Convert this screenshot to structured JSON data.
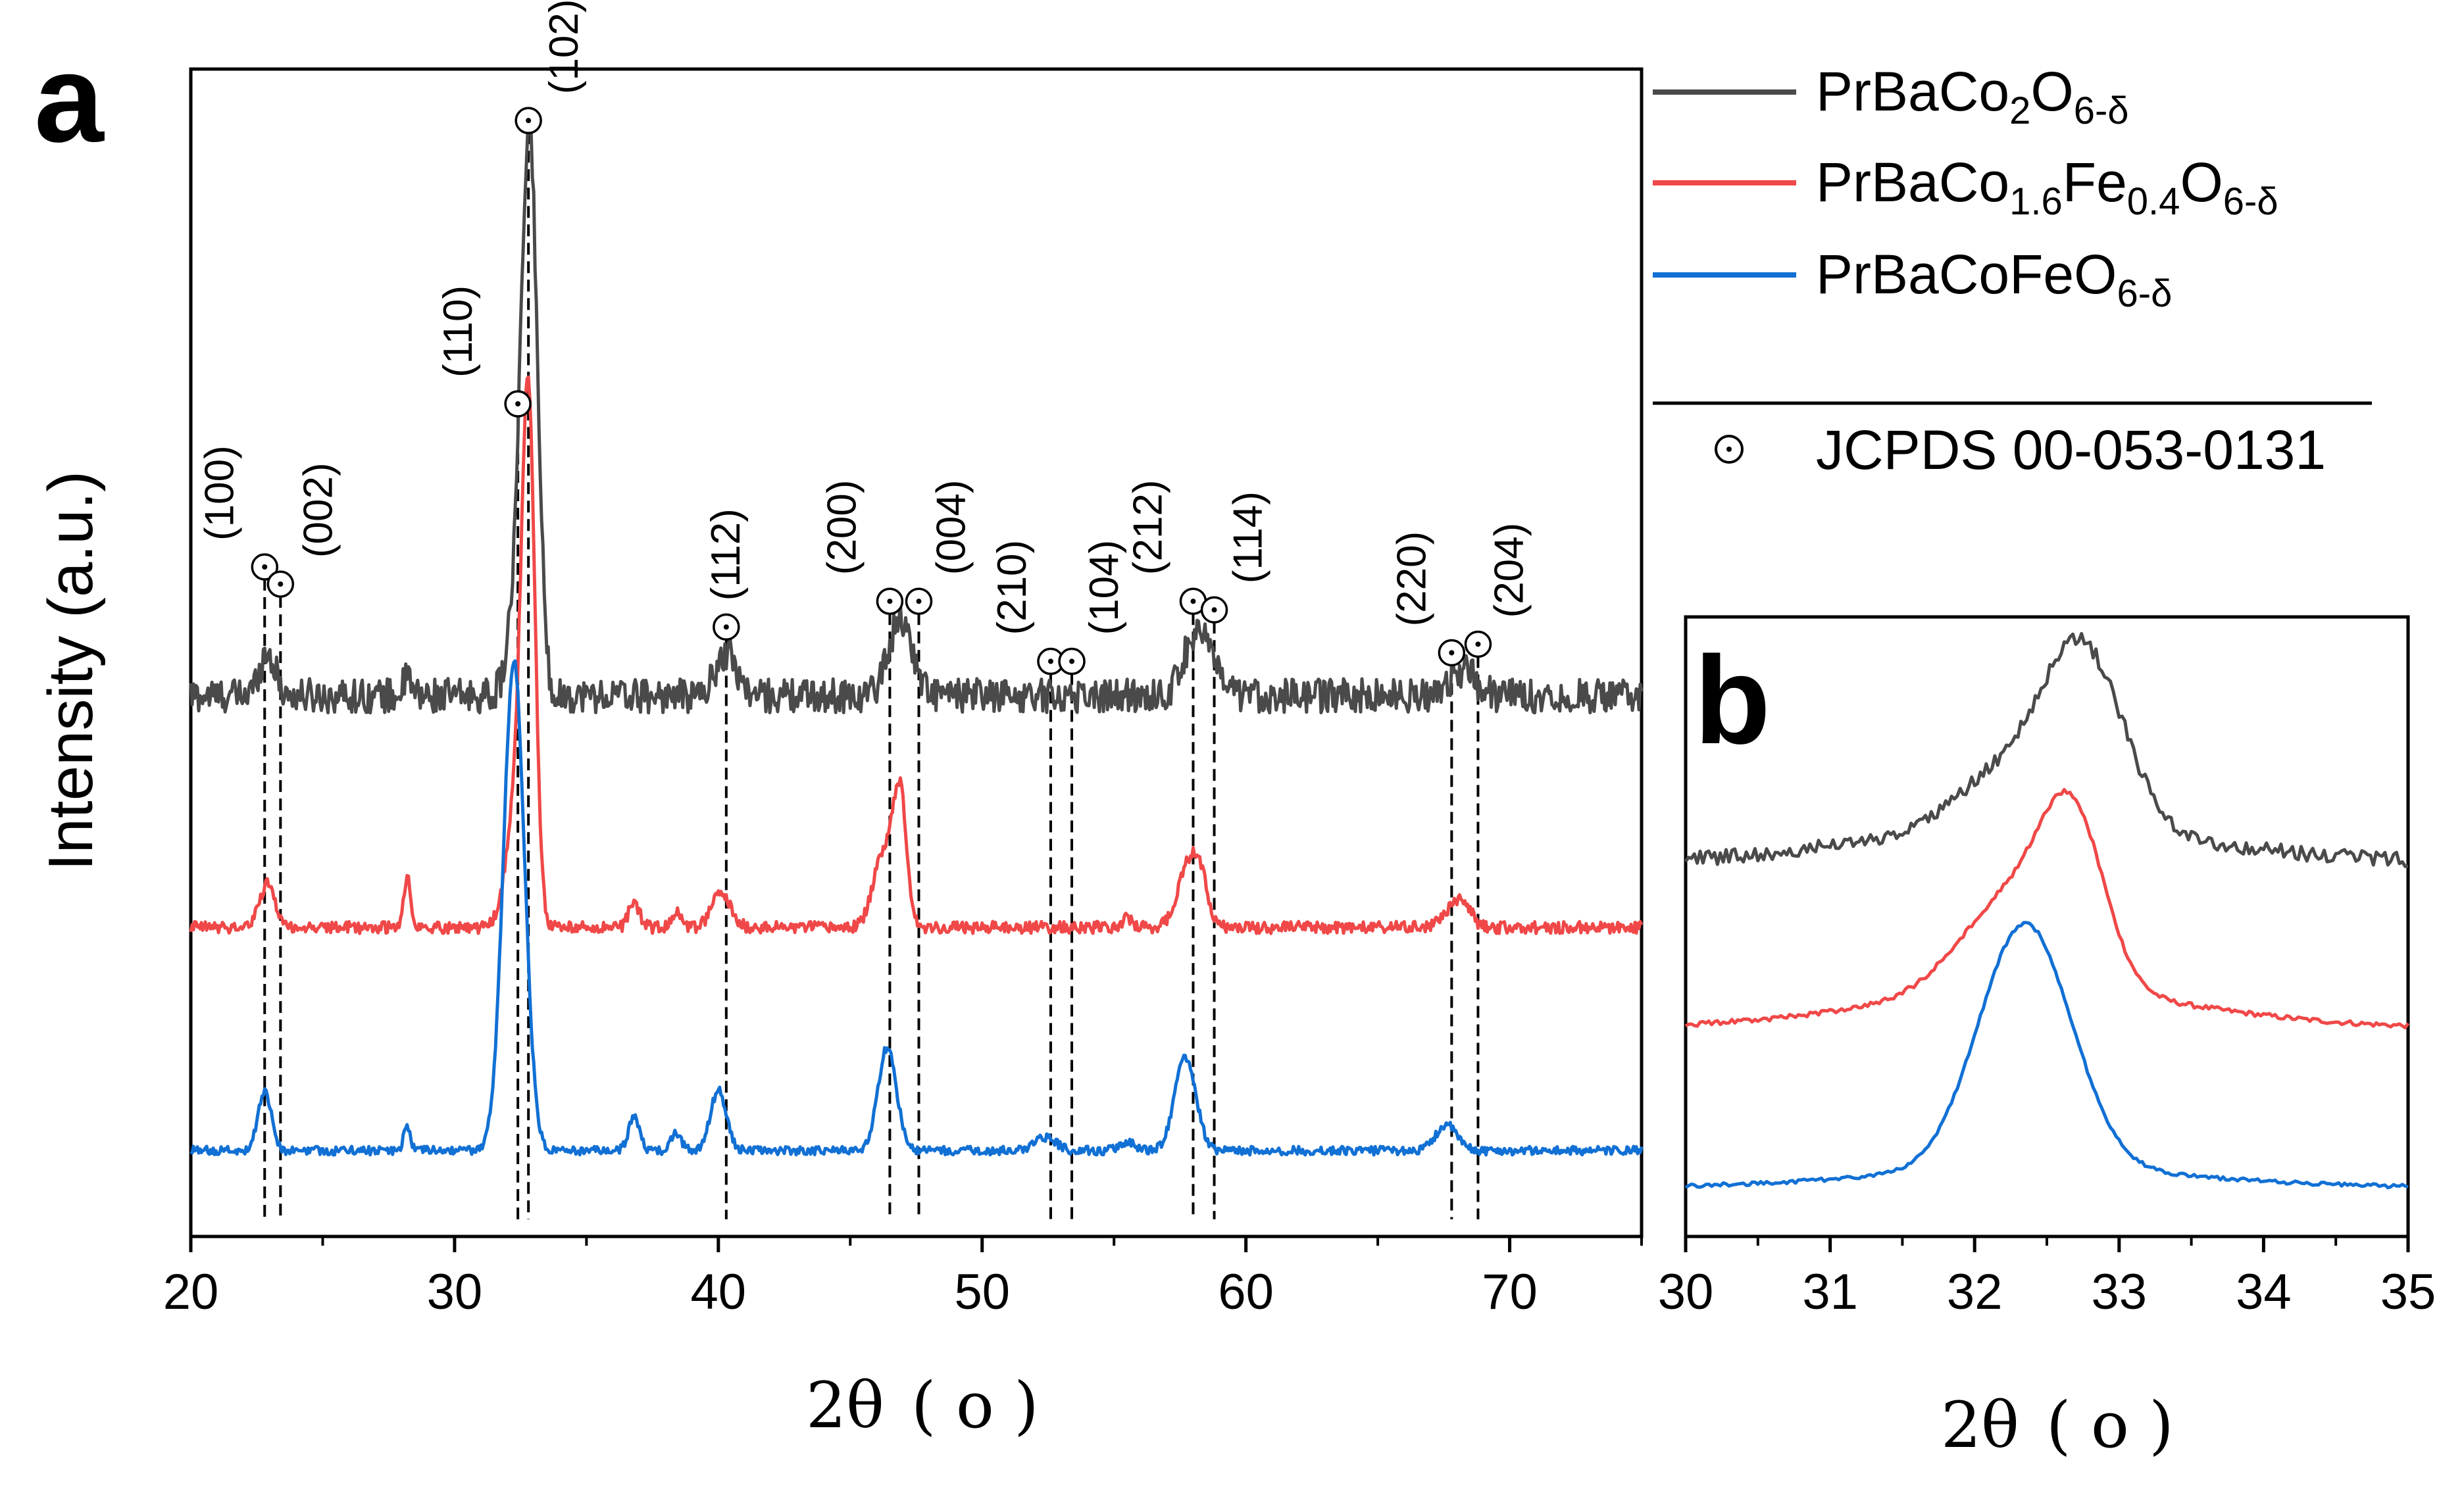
{
  "colors": {
    "PrBaCo2O6": "#4a4a4a",
    "PrBaCo16Fe04O6": "#f04848",
    "PrBaCoFeO6": "#1170d4",
    "axis": "#000000"
  },
  "icons": {
    "reference_marker": "circle-dot-icon"
  },
  "chart_data": [
    {
      "panel": "a",
      "type": "line",
      "xlabel_main": "2θ",
      "xlabel_unit": "( o )",
      "ylabel": "Intensity (a.u.)",
      "xlim": [
        20,
        75
      ],
      "xticks": [
        "20",
        "30",
        "40",
        "50",
        "60",
        "70"
      ],
      "y_axis_numbers_shown": false,
      "series": [
        {
          "name": "PrBaCo2O6-δ",
          "label_main": "PrBaCo",
          "sub1": "2",
          "label_mid": "O",
          "sub2": "6-δ",
          "baseline": 0.57,
          "noise": 0.02,
          "peaks": [
            [
              22.9,
              0.05,
              0.3
            ],
            [
              28.2,
              0.02,
              0.15
            ],
            [
              32.4,
              0.1,
              0.35
            ],
            [
              32.85,
              0.62,
              0.3
            ],
            [
              40.3,
              0.05,
              0.4
            ],
            [
              46.9,
              0.09,
              0.45
            ],
            [
              58.2,
              0.08,
              0.5
            ],
            [
              68.2,
              0.03,
              0.5
            ]
          ]
        },
        {
          "name": "PrBaCo1.6Fe0.4O6-δ",
          "label_main": "PrBaCo",
          "sub1": "1.6",
          "label_mid": "Fe",
          "sub2": "0.4",
          "label_end": "O",
          "sub3": "6-δ",
          "baseline": 0.3,
          "noise": 0.007,
          "peaks": [
            [
              22.9,
              0.05,
              0.3
            ],
            [
              28.2,
              0.06,
              0.12
            ],
            [
              32.4,
              0.15,
              0.4
            ],
            [
              32.8,
              0.55,
              0.25
            ],
            [
              36.8,
              0.03,
              0.2
            ],
            [
              38.4,
              0.02,
              0.15
            ],
            [
              40.1,
              0.04,
              0.35
            ],
            [
              46.3,
              0.09,
              0.4
            ],
            [
              46.9,
              0.14,
              0.25
            ],
            [
              55.5,
              0.01,
              0.2
            ],
            [
              57.8,
              0.07,
              0.4
            ],
            [
              58.3,
              0.04,
              0.3
            ],
            [
              67.8,
              0.02,
              0.4
            ],
            [
              68.3,
              0.02,
              0.3
            ]
          ]
        },
        {
          "name": "PrBaCoFeO6-δ",
          "label_main": "PrBaCoFeO",
          "sub1": "6-δ",
          "baseline": 0.04,
          "noise": 0.005,
          "peaks": [
            [
              22.8,
              0.07,
              0.25
            ],
            [
              28.2,
              0.03,
              0.12
            ],
            [
              32.25,
              0.57,
              0.4
            ],
            [
              36.8,
              0.04,
              0.2
            ],
            [
              38.4,
              0.02,
              0.2
            ],
            [
              40.0,
              0.07,
              0.3
            ],
            [
              46.4,
              0.12,
              0.35
            ],
            [
              52.4,
              0.015,
              0.4
            ],
            [
              55.5,
              0.01,
              0.3
            ],
            [
              57.7,
              0.11,
              0.4
            ],
            [
              67.6,
              0.03,
              0.4
            ]
          ]
        }
      ],
      "reference": {
        "name": "JCPDS 00-053-0131",
        "peaks": [
          {
            "hkl": "(100)",
            "x": 22.8,
            "marker_y": 0.72,
            "line_bottom": -0.04
          },
          {
            "hkl": "(002)",
            "x": 23.4,
            "marker_y": 0.7,
            "line_bottom": -0.04
          },
          {
            "hkl": "(110)",
            "x": 32.4,
            "marker_y": 0.91,
            "line_bottom": -0.04
          },
          {
            "hkl": "(102)",
            "x": 32.8,
            "marker_y": 1.24,
            "line_bottom": -0.04
          },
          {
            "hkl": "(112)",
            "x": 40.3,
            "marker_y": 0.65,
            "line_bottom": -0.04
          },
          {
            "hkl": "(200)",
            "x": 46.5,
            "marker_y": 0.68,
            "line_bottom": -0.04
          },
          {
            "hkl": "(004)",
            "x": 47.6,
            "marker_y": 0.68,
            "line_bottom": -0.04
          },
          {
            "hkl": "(210)",
            "x": 52.6,
            "marker_y": 0.61,
            "line_bottom": -0.04
          },
          {
            "hkl": "(104)",
            "x": 53.4,
            "marker_y": 0.61,
            "line_bottom": -0.04
          },
          {
            "hkl": "(212)",
            "x": 58.0,
            "marker_y": 0.68,
            "line_bottom": -0.04
          },
          {
            "hkl": "(114)",
            "x": 58.8,
            "marker_y": 0.67,
            "line_bottom": -0.04
          },
          {
            "hkl": "(220)",
            "x": 67.8,
            "marker_y": 0.62,
            "line_bottom": -0.04
          },
          {
            "hkl": "(204)",
            "x": 68.8,
            "marker_y": 0.63,
            "line_bottom": -0.04
          }
        ]
      }
    },
    {
      "panel": "b",
      "type": "line",
      "xlabel_main": "2θ",
      "xlabel_unit": "( o )",
      "xlim": [
        30,
        35
      ],
      "xticks": [
        "30",
        "31",
        "32",
        "33",
        "34",
        "35"
      ],
      "y_axis_numbers_shown": false,
      "series": [
        {
          "name": "PrBaCo2O6-δ",
          "baseline": 0.56,
          "slope": 0.06,
          "noise": 0.012,
          "peaks": [
            [
              32.2,
              0.08,
              0.35
            ],
            [
              32.75,
              0.28,
              0.28
            ]
          ]
        },
        {
          "name": "PrBaCo1.6Fe0.4O6-δ",
          "baseline": 0.29,
          "slope": 0.06,
          "noise": 0.004,
          "peaks": [
            [
              32.25,
              0.15,
              0.35
            ],
            [
              32.68,
              0.25,
              0.22
            ]
          ]
        },
        {
          "name": "PrBaCoFeO6-δ",
          "baseline": 0.03,
          "slope": 0.03,
          "noise": 0.003,
          "peaks": [
            [
              32.35,
              0.4,
              0.32
            ]
          ]
        }
      ]
    }
  ]
}
